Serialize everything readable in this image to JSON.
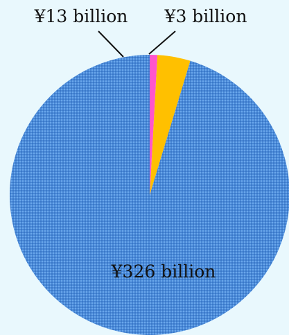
{
  "chart_data": {
    "type": "pie",
    "title": "",
    "slices": [
      {
        "label": "¥326 billion",
        "value": 326,
        "color": "#4a8ad8"
      },
      {
        "label": "¥13 billion",
        "value": 13,
        "color": "#ffc000"
      },
      {
        "label": "¥3 billion",
        "value": 3,
        "color": "#ff55cc"
      }
    ],
    "start_angle_deg": 0,
    "direction": "counterclockwise",
    "legend": "none",
    "background_color": "#e9f8fd"
  }
}
